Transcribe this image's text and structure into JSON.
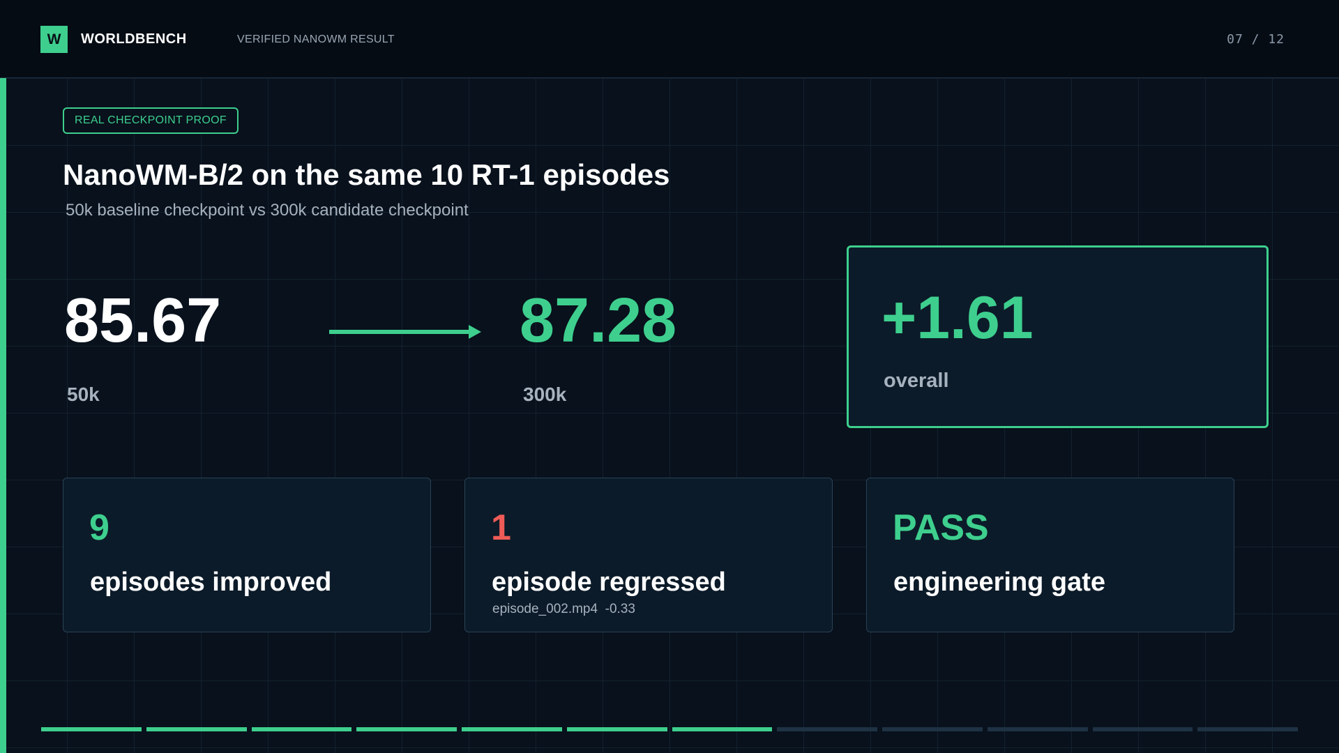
{
  "header": {
    "logo_letter": "W",
    "brand": "WORLDBENCH",
    "subtitle": "VERIFIED NANOWM RESULT",
    "page_counter": "07 / 12"
  },
  "slide": {
    "tag": "REAL CHECKPOINT PROOF",
    "title": "NanoWM-B/2 on the same 10 RT-1 episodes",
    "subtitle": "50k baseline checkpoint vs 300k candidate checkpoint"
  },
  "comparison": {
    "before_value": "85.67",
    "before_label": "50k",
    "after_value": "87.28",
    "after_label": "300k"
  },
  "delta": {
    "value": "+1.61",
    "label": "overall"
  },
  "stats": [
    {
      "value": "9",
      "label": "episodes improved",
      "detail": ""
    },
    {
      "value": "1",
      "label": "episode regressed",
      "detail": "episode_002.mp4  -0.33"
    },
    {
      "value": "PASS",
      "label": "engineering gate",
      "detail": ""
    }
  ],
  "progress": {
    "current": 7,
    "total": 12
  },
  "colors": {
    "accent": "#3ecf8e",
    "negative": "#ef5b57",
    "background": "#08111c",
    "card": "#0c1b29"
  },
  "icons": {
    "arrow": "right-arrow-icon"
  }
}
